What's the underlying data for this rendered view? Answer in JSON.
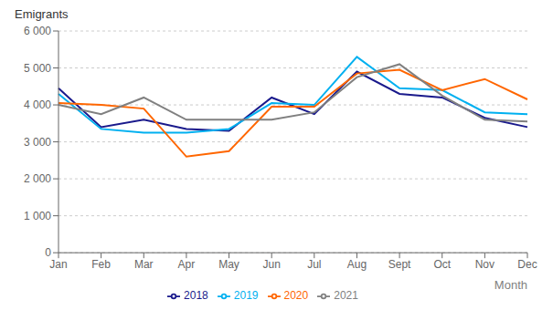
{
  "chart_data": {
    "type": "line",
    "categories": [
      "Jan",
      "Feb",
      "Mar",
      "Apr",
      "May",
      "Jun",
      "Jul",
      "Aug",
      "Sept",
      "Oct",
      "Nov",
      "Dec"
    ],
    "series": [
      {
        "name": "2018",
        "color": "#1a1a8c",
        "values": [
          4450,
          3400,
          3600,
          3350,
          3300,
          4200,
          3750,
          4900,
          4300,
          4200,
          3650,
          3400
        ]
      },
      {
        "name": "2019",
        "color": "#00b0f0",
        "values": [
          4300,
          3350,
          3250,
          3250,
          3350,
          4050,
          4000,
          5300,
          4450,
          4400,
          3800,
          3750
        ]
      },
      {
        "name": "2020",
        "color": "#ff6600",
        "values": [
          4050,
          4000,
          3900,
          2600,
          2750,
          3950,
          3950,
          4850,
          4950,
          4400,
          4700,
          4150
        ]
      },
      {
        "name": "2021",
        "color": "#808080",
        "values": [
          4000,
          3750,
          4200,
          3600,
          3600,
          3600,
          3800,
          4750,
          5100,
          4250,
          3600,
          3550
        ]
      }
    ],
    "ylabel": "Emigrants",
    "xlabel": "Month",
    "ylim": [
      0,
      6000
    ],
    "yticks": [
      0,
      {
        "value": 1000,
        "label": "1 000"
      },
      {
        "value": 2000,
        "label": "2 000"
      },
      {
        "value": 3000,
        "label": "3 000"
      },
      {
        "value": 4000,
        "label": "4 000"
      },
      {
        "value": 5000,
        "label": "5 000"
      },
      {
        "value": 6000,
        "label": "6 000"
      }
    ],
    "grid": true,
    "legend": "bottom"
  }
}
